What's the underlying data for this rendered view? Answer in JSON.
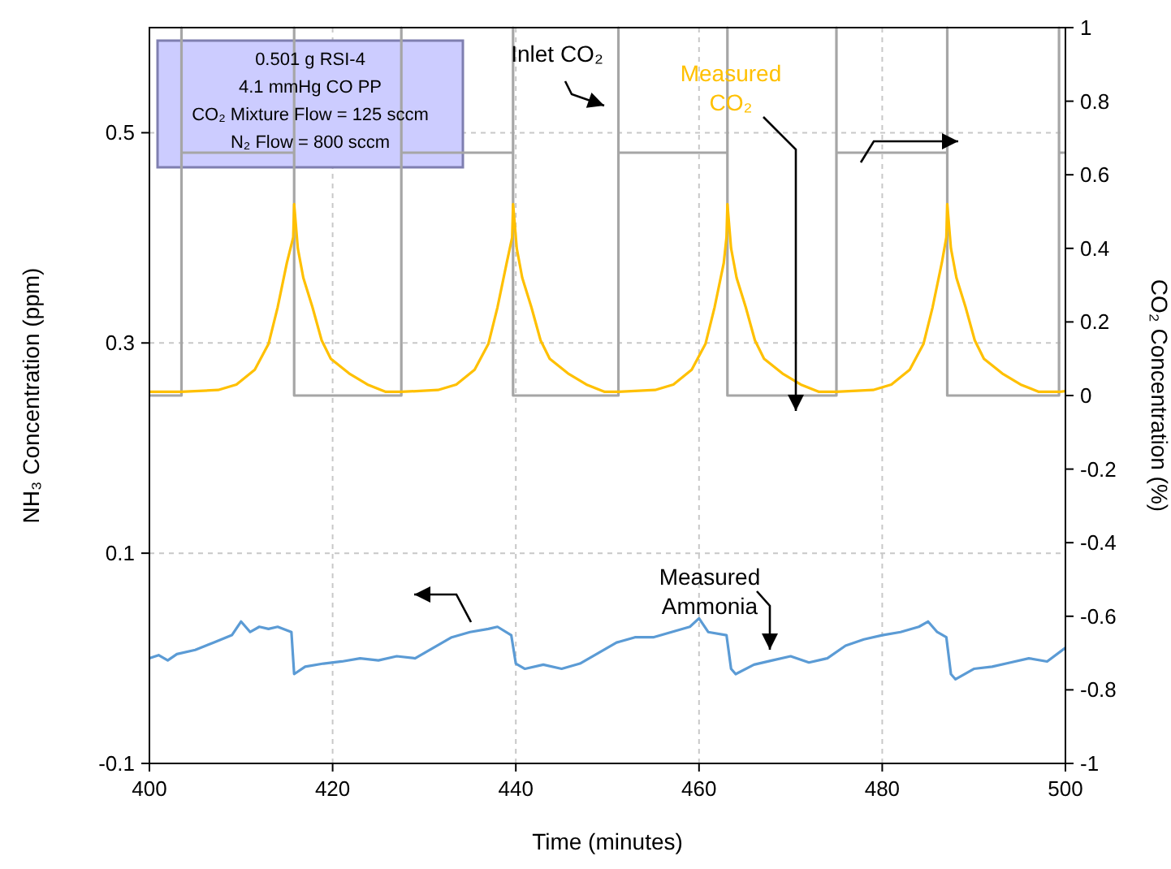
{
  "chart_data": {
    "type": "line",
    "xlabel": "Time (minutes)",
    "ylabel": "NH₃ Concentration (ppm)",
    "y2label": "CO₂ Concentration (%)",
    "xlim": [
      400,
      500
    ],
    "xticks": [
      400,
      420,
      440,
      460,
      480,
      500
    ],
    "ylim": [
      -0.1,
      0.6
    ],
    "yticks": [
      -0.1,
      0.1,
      0.3,
      0.5
    ],
    "y2lim": [
      -1,
      1
    ],
    "y2ticks": [
      -1,
      -0.8,
      -0.6,
      -0.4,
      -0.2,
      0,
      0.2,
      0.4,
      0.6,
      0.8,
      1
    ],
    "grid": true,
    "marker": "none",
    "line_style": "solid",
    "series": [
      {
        "name": "Inlet CO₂",
        "color": "#a6a6a6",
        "axis": "y2",
        "x": [
          400,
          403.5,
          403.5,
          403.5,
          415.8,
          415.8,
          415.8,
          427.5,
          427.5,
          427.5,
          439.7,
          439.7,
          439.7,
          451.2,
          451.2,
          451.2,
          463.1,
          463.1,
          463.1,
          475,
          475,
          475,
          487.1,
          487.1,
          487.1,
          499.3,
          499.3,
          499.3,
          500
        ],
        "values": [
          0,
          0,
          1,
          0.66,
          0.66,
          1,
          0,
          0,
          1,
          0.66,
          0.66,
          1,
          0,
          0,
          1,
          0.66,
          0.66,
          1,
          0,
          0,
          1,
          0.66,
          0.66,
          1,
          0,
          0,
          1,
          0.66,
          0.66
        ]
      },
      {
        "name": "Measured CO₂",
        "color": "#ffc000",
        "axis": "y2",
        "x": [
          400,
          403.5,
          407.5,
          409.5,
          411.5,
          413,
          414,
          415,
          415.7,
          415.8,
          416.2,
          416.8,
          417.8,
          418.8,
          419.8,
          421.8,
          423.8,
          425.8,
          427.5,
          431.5,
          433.5,
          435.5,
          437,
          438,
          439,
          439.6,
          439.7,
          440.1,
          440.7,
          441.7,
          442.7,
          443.7,
          445.7,
          447.7,
          449.7,
          451.2,
          455.2,
          457.2,
          459.2,
          460.7,
          461.7,
          462.7,
          463,
          463.1,
          463.5,
          464.1,
          465.1,
          466.1,
          467.1,
          469.1,
          471.1,
          473.1,
          475,
          479,
          481,
          483,
          484.5,
          485.5,
          486.5,
          487,
          487.1,
          487.5,
          488.1,
          489.1,
          490.1,
          491.1,
          493.1,
          495.1,
          497.1,
          499.3,
          500
        ],
        "values": [
          0.01,
          0.01,
          0.015,
          0.03,
          0.07,
          0.14,
          0.24,
          0.36,
          0.43,
          0.52,
          0.4,
          0.32,
          0.24,
          0.15,
          0.1,
          0.06,
          0.03,
          0.01,
          0.01,
          0.015,
          0.03,
          0.07,
          0.14,
          0.24,
          0.36,
          0.43,
          0.52,
          0.4,
          0.32,
          0.24,
          0.15,
          0.1,
          0.06,
          0.03,
          0.01,
          0.01,
          0.015,
          0.03,
          0.07,
          0.14,
          0.24,
          0.36,
          0.43,
          0.52,
          0.4,
          0.32,
          0.24,
          0.15,
          0.1,
          0.06,
          0.03,
          0.01,
          0.01,
          0.015,
          0.03,
          0.07,
          0.14,
          0.24,
          0.36,
          0.43,
          0.52,
          0.4,
          0.32,
          0.24,
          0.15,
          0.1,
          0.06,
          0.03,
          0.01,
          0.01,
          0.012
        ]
      },
      {
        "name": "Measured Ammonia",
        "color": "#5b9bd5",
        "x": [
          400,
          401,
          402,
          403,
          405,
          407,
          409,
          410,
          411,
          412,
          413,
          414,
          415.5,
          415.8,
          417,
          419,
          421,
          423,
          425,
          427,
          429,
          431,
          433,
          435,
          437,
          438,
          439.5,
          440,
          441,
          443,
          445,
          447,
          449,
          451,
          453,
          455,
          457,
          459,
          460,
          461,
          463,
          463.5,
          464,
          466,
          468,
          470,
          472,
          474,
          476,
          478,
          480,
          482,
          484,
          485,
          486,
          487,
          487.5,
          488,
          490,
          492,
          494,
          496,
          498,
          500
        ],
        "values": [
          0,
          0.003,
          -0.002,
          0.004,
          0.008,
          0.015,
          0.022,
          0.035,
          0.025,
          0.03,
          0.028,
          0.03,
          0.025,
          -0.015,
          -0.008,
          -0.005,
          -0.003,
          0,
          -0.002,
          0.002,
          0,
          0.01,
          0.02,
          0.025,
          0.028,
          0.03,
          0.022,
          -0.005,
          -0.01,
          -0.006,
          -0.01,
          -0.005,
          0.005,
          0.015,
          0.02,
          0.02,
          0.025,
          0.03,
          0.038,
          0.025,
          0.022,
          -0.01,
          -0.015,
          -0.006,
          -0.002,
          0.002,
          -0.004,
          0,
          0.012,
          0.018,
          0.022,
          0.025,
          0.03,
          0.035,
          0.025,
          0.02,
          -0.015,
          -0.02,
          -0.01,
          -0.008,
          -0.004,
          0,
          -0.003,
          0.01
        ]
      }
    ],
    "annotations": [
      "0.501 g RSI-4",
      "4.1 mmHg CO PP",
      "CO₂ Mixture Flow = 125 sccm",
      "N₂ Flow = 800 sccm"
    ]
  }
}
